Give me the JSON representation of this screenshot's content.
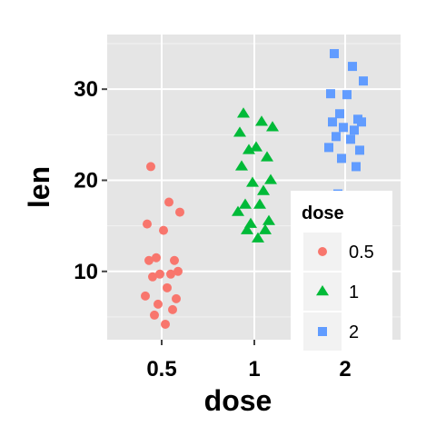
{
  "chart_data": {
    "type": "scatter",
    "title": "",
    "xlabel": "dose",
    "ylabel": "len",
    "x_categories": [
      "0.5",
      "1",
      "2"
    ],
    "ylim": [
      2.5,
      36
    ],
    "y_ticks": [
      10,
      20,
      30
    ],
    "grid": true,
    "legend": {
      "title": "dose",
      "placement": "bottom-right"
    },
    "series": [
      {
        "name": "0.5",
        "marker": "circle",
        "color": "#F8766D",
        "points": [
          {
            "x": "0.5",
            "y": 21.5
          },
          {
            "x": "0.5",
            "y": 17.6
          },
          {
            "x": "0.5",
            "y": 16.5
          },
          {
            "x": "0.5",
            "y": 15.2
          },
          {
            "x": "0.5",
            "y": 14.5
          },
          {
            "x": "0.5",
            "y": 11.5
          },
          {
            "x": "0.5",
            "y": 11.2
          },
          {
            "x": "0.5",
            "y": 11.2
          },
          {
            "x": "0.5",
            "y": 10.0
          },
          {
            "x": "0.5",
            "y": 9.7
          },
          {
            "x": "0.5",
            "y": 9.7
          },
          {
            "x": "0.5",
            "y": 9.4
          },
          {
            "x": "0.5",
            "y": 8.2
          },
          {
            "x": "0.5",
            "y": 7.3
          },
          {
            "x": "0.5",
            "y": 7.0
          },
          {
            "x": "0.5",
            "y": 6.4
          },
          {
            "x": "0.5",
            "y": 5.8
          },
          {
            "x": "0.5",
            "y": 5.2
          },
          {
            "x": "0.5",
            "y": 4.2
          }
        ]
      },
      {
        "name": "1",
        "marker": "triangle",
        "color": "#00BA38",
        "points": [
          {
            "x": "1",
            "y": 27.3
          },
          {
            "x": "1",
            "y": 26.4
          },
          {
            "x": "1",
            "y": 25.8
          },
          {
            "x": "1",
            "y": 25.2
          },
          {
            "x": "1",
            "y": 23.6
          },
          {
            "x": "1",
            "y": 23.3
          },
          {
            "x": "1",
            "y": 22.5
          },
          {
            "x": "1",
            "y": 21.5
          },
          {
            "x": "1",
            "y": 20.0
          },
          {
            "x": "1",
            "y": 19.7
          },
          {
            "x": "1",
            "y": 18.8
          },
          {
            "x": "1",
            "y": 17.3
          },
          {
            "x": "1",
            "y": 17.3
          },
          {
            "x": "1",
            "y": 16.5
          },
          {
            "x": "1",
            "y": 15.5
          },
          {
            "x": "1",
            "y": 15.2
          },
          {
            "x": "1",
            "y": 14.5
          },
          {
            "x": "1",
            "y": 14.5
          },
          {
            "x": "1",
            "y": 13.6
          }
        ]
      },
      {
        "name": "2",
        "marker": "square",
        "color": "#619CFF",
        "points": [
          {
            "x": "2",
            "y": 33.9
          },
          {
            "x": "2",
            "y": 32.5
          },
          {
            "x": "2",
            "y": 30.9
          },
          {
            "x": "2",
            "y": 29.5
          },
          {
            "x": "2",
            "y": 29.4
          },
          {
            "x": "2",
            "y": 27.3
          },
          {
            "x": "2",
            "y": 26.7
          },
          {
            "x": "2",
            "y": 26.4
          },
          {
            "x": "2",
            "y": 26.4
          },
          {
            "x": "2",
            "y": 25.8
          },
          {
            "x": "2",
            "y": 25.5
          },
          {
            "x": "2",
            "y": 24.8
          },
          {
            "x": "2",
            "y": 24.5
          },
          {
            "x": "2",
            "y": 23.6
          },
          {
            "x": "2",
            "y": 23.3
          },
          {
            "x": "2",
            "y": 22.4
          },
          {
            "x": "2",
            "y": 21.5
          },
          {
            "x": "2",
            "y": 18.5
          }
        ]
      }
    ]
  }
}
